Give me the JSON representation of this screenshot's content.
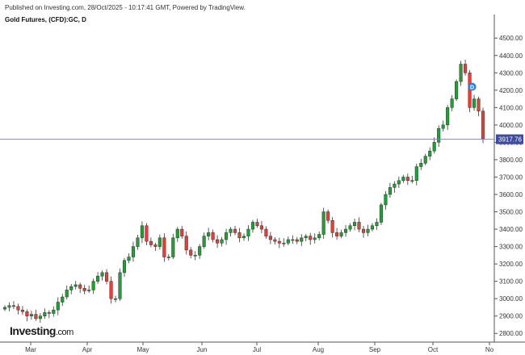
{
  "header": {
    "published": "Published on Investing.com, 28/Oct/2025 - 10:17:41 GMT, Powered by TradingView.",
    "symbol": "Gold Futures, (CFD):GC, D"
  },
  "logo": {
    "main": "Investing",
    "suffix": ".com"
  },
  "marker": {
    "label": "D"
  },
  "colors": {
    "up": "#22a035",
    "down": "#e0413a",
    "price_line": "#7b7fc4",
    "price_label_bg": "#3d4a9e"
  },
  "chart_data": {
    "type": "candlestick",
    "title": "Gold Futures, (CFD):GC, D",
    "ylim": [
      2750,
      4580
    ],
    "y_ticks": [
      "2800.00",
      "2900.00",
      "3000.00",
      "3100.00",
      "3200.00",
      "3300.00",
      "3400.00",
      "3500.00",
      "3600.00",
      "3700.00",
      "3800.00",
      "3900.00",
      "4000.00",
      "4100.00",
      "4200.00",
      "4300.00",
      "4400.00",
      "4500.00"
    ],
    "x_labels": [
      "Mar",
      "Apr",
      "May",
      "Jun",
      "Jul",
      "Aug",
      "Sep",
      "Oct",
      "No"
    ],
    "last_price": 3917.76,
    "last_price_label": "3917.76",
    "grid": false,
    "series": [
      {
        "values": [
          2950,
          2960,
          2955,
          2935,
          2925,
          2900,
          2910,
          2885,
          2900,
          2920,
          2915,
          2935,
          2980,
          3010,
          3050,
          3070,
          3080,
          3060,
          3045,
          3050,
          3100,
          3130,
          3150,
          3100,
          3000,
          3000,
          3150,
          3220,
          3240,
          3300,
          3350,
          3420,
          3330,
          3310,
          3300,
          3350,
          3240,
          3240,
          3350,
          3400,
          3360,
          3280,
          3250,
          3250,
          3300,
          3360,
          3380,
          3340,
          3320,
          3340,
          3380,
          3400,
          3380,
          3350,
          3360,
          3400,
          3440,
          3420,
          3400,
          3360,
          3340,
          3330,
          3320,
          3320,
          3340,
          3340,
          3330,
          3350,
          3360,
          3340,
          3350,
          3370,
          3500,
          3450,
          3380,
          3360,
          3380,
          3400,
          3420,
          3440,
          3400,
          3380,
          3400,
          3420,
          3440,
          3540,
          3600,
          3640,
          3660,
          3680,
          3700,
          3680,
          3680,
          3760,
          3780,
          3820,
          3850,
          3900,
          3980,
          4000,
          4100,
          4150,
          4250,
          4350,
          4300,
          4100,
          4150,
          4080,
          3917.76
        ]
      }
    ]
  }
}
